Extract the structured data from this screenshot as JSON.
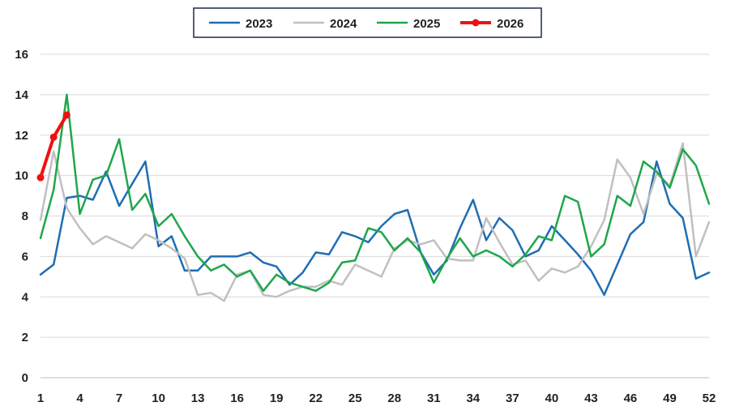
{
  "chart_data": {
    "type": "line",
    "title": "",
    "xlabel": "",
    "ylabel": "",
    "xlim": [
      1,
      52
    ],
    "ylim": [
      0,
      16
    ],
    "x_ticks": [
      1,
      4,
      7,
      10,
      13,
      16,
      19,
      22,
      25,
      28,
      31,
      34,
      37,
      40,
      43,
      46,
      49,
      52
    ],
    "y_ticks": [
      0,
      2,
      4,
      6,
      8,
      10,
      12,
      14,
      16
    ],
    "grid": "horizontal",
    "legend_position": "top-center",
    "series": [
      {
        "name": "2023",
        "color": "#1f6db5",
        "markers": false,
        "x": [
          1,
          2,
          3,
          4,
          5,
          6,
          7,
          8,
          9,
          10,
          11,
          12,
          13,
          14,
          15,
          16,
          17,
          18,
          19,
          20,
          21,
          22,
          23,
          24,
          25,
          26,
          27,
          28,
          29,
          30,
          31,
          32,
          33,
          34,
          35,
          36,
          37,
          38,
          39,
          40,
          41,
          42,
          43,
          44,
          45,
          46,
          47,
          48,
          49,
          50,
          51,
          52
        ],
        "values": [
          5.1,
          5.6,
          8.9,
          9.0,
          8.8,
          10.2,
          8.5,
          9.6,
          10.7,
          6.5,
          7.0,
          5.3,
          5.3,
          6.0,
          6.0,
          6.0,
          6.2,
          5.7,
          5.5,
          4.6,
          5.2,
          6.2,
          6.1,
          7.2,
          7.0,
          6.7,
          7.5,
          8.1,
          8.3,
          6.2,
          5.1,
          5.8,
          7.4,
          8.8,
          6.8,
          7.9,
          7.3,
          6.0,
          6.3,
          7.5,
          6.8,
          6.1,
          5.3,
          4.1,
          5.6,
          7.1,
          7.7,
          10.7,
          8.6,
          7.9,
          4.9,
          5.2
        ]
      },
      {
        "name": "2024",
        "color": "#c0c0c0",
        "markers": false,
        "x": [
          1,
          2,
          3,
          4,
          5,
          6,
          7,
          8,
          9,
          10,
          11,
          12,
          13,
          14,
          15,
          16,
          17,
          18,
          19,
          20,
          21,
          22,
          23,
          24,
          25,
          26,
          27,
          28,
          29,
          30,
          31,
          32,
          33,
          34,
          35,
          36,
          37,
          38,
          39,
          40,
          41,
          42,
          43,
          44,
          45,
          46,
          47,
          48,
          49,
          50,
          51,
          52
        ],
        "values": [
          7.8,
          11.2,
          8.4,
          7.4,
          6.6,
          7.0,
          6.7,
          6.4,
          7.1,
          6.8,
          6.4,
          5.9,
          4.1,
          4.2,
          3.8,
          5.1,
          5.3,
          4.1,
          4.0,
          4.3,
          4.5,
          4.5,
          4.8,
          4.6,
          5.6,
          5.3,
          5.0,
          6.4,
          6.8,
          6.6,
          6.8,
          5.9,
          5.8,
          5.8,
          7.9,
          6.7,
          5.6,
          5.8,
          4.8,
          5.4,
          5.2,
          5.5,
          6.5,
          7.8,
          10.8,
          9.9,
          8.1,
          10.1,
          9.5,
          11.6,
          6.0,
          7.7
        ]
      },
      {
        "name": "2025",
        "color": "#1fa64a",
        "markers": false,
        "x": [
          1,
          2,
          3,
          4,
          5,
          6,
          7,
          8,
          9,
          10,
          11,
          12,
          13,
          14,
          15,
          16,
          17,
          18,
          19,
          20,
          21,
          22,
          23,
          24,
          25,
          26,
          27,
          28,
          29,
          30,
          31,
          32,
          33,
          34,
          35,
          36,
          37,
          38,
          39,
          40,
          41,
          42,
          43,
          44,
          45,
          46,
          47,
          48,
          49,
          50,
          51,
          52
        ],
        "values": [
          6.9,
          9.3,
          14.0,
          8.1,
          9.8,
          10.0,
          11.8,
          8.3,
          9.1,
          7.5,
          8.1,
          7.0,
          6.0,
          5.3,
          5.6,
          5.0,
          5.3,
          4.3,
          5.1,
          4.7,
          4.5,
          4.3,
          4.7,
          5.7,
          5.8,
          7.4,
          7.2,
          6.3,
          6.9,
          6.2,
          4.7,
          5.9,
          6.9,
          6.0,
          6.3,
          6.0,
          5.5,
          6.1,
          7.0,
          6.8,
          9.0,
          8.7,
          6.0,
          6.6,
          9.0,
          8.5,
          10.7,
          10.2,
          9.4,
          11.3,
          10.5,
          8.6
        ]
      },
      {
        "name": "2026",
        "color": "#ee1111",
        "markers": true,
        "x": [
          1,
          2,
          3
        ],
        "values": [
          9.9,
          11.9,
          13.0
        ]
      }
    ]
  }
}
